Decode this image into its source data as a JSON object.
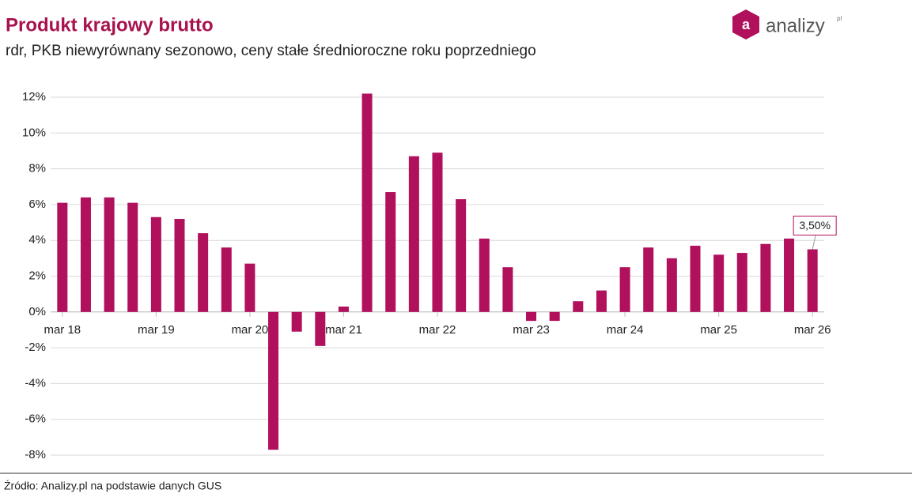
{
  "chart_data": {
    "type": "bar",
    "title": "Produkt krajowy brutto",
    "subtitle": "rdr, PKB niewyrównany sezonowo, ceny stałe średnioroczne roku poprzedniego",
    "source": "Źródło: Analizy.pl na podstawie danych GUS",
    "logo": {
      "text": "analizy",
      "suffix": "pl"
    },
    "categories": [
      "mar 18",
      null,
      null,
      null,
      "mar 19",
      null,
      null,
      null,
      "mar 20",
      null,
      null,
      null,
      "mar 21",
      null,
      null,
      null,
      "mar 22",
      null,
      null,
      null,
      "mar 23",
      null,
      null,
      null,
      "mar 24",
      null,
      null,
      null,
      "mar 25",
      null,
      null,
      null,
      "mar 26"
    ],
    "values": [
      6.1,
      6.4,
      6.4,
      6.1,
      5.3,
      5.2,
      4.4,
      3.6,
      2.7,
      -7.7,
      -1.1,
      -1.9,
      0.3,
      12.2,
      6.7,
      8.7,
      8.9,
      6.3,
      4.1,
      2.5,
      -0.5,
      -0.5,
      0.6,
      1.2,
      2.5,
      3.6,
      3.0,
      3.7,
      3.2,
      3.3,
      3.8,
      4.1,
      3.5
    ],
    "value_labels": [
      null,
      null,
      null,
      null,
      null,
      null,
      null,
      null,
      null,
      null,
      null,
      null,
      null,
      null,
      null,
      null,
      null,
      null,
      null,
      null,
      null,
      null,
      null,
      null,
      null,
      null,
      null,
      null,
      null,
      null,
      null,
      null,
      "3,50%"
    ],
    "color": "#b0105c",
    "ylim": [
      -8,
      12
    ],
    "yticks": [
      {
        "value": -8,
        "label": "-8%"
      },
      {
        "value": -6,
        "label": "-6%"
      },
      {
        "value": -4,
        "label": "-4%"
      },
      {
        "value": -2,
        "label": "-2%"
      },
      {
        "value": 0,
        "label": "0%"
      },
      {
        "value": 2,
        "label": "2%"
      },
      {
        "value": 4,
        "label": "4%"
      },
      {
        "value": 6,
        "label": "6%"
      },
      {
        "value": 8,
        "label": "8%"
      },
      {
        "value": 10,
        "label": "10%"
      },
      {
        "value": 12,
        "label": "12%"
      }
    ],
    "grid": true
  }
}
